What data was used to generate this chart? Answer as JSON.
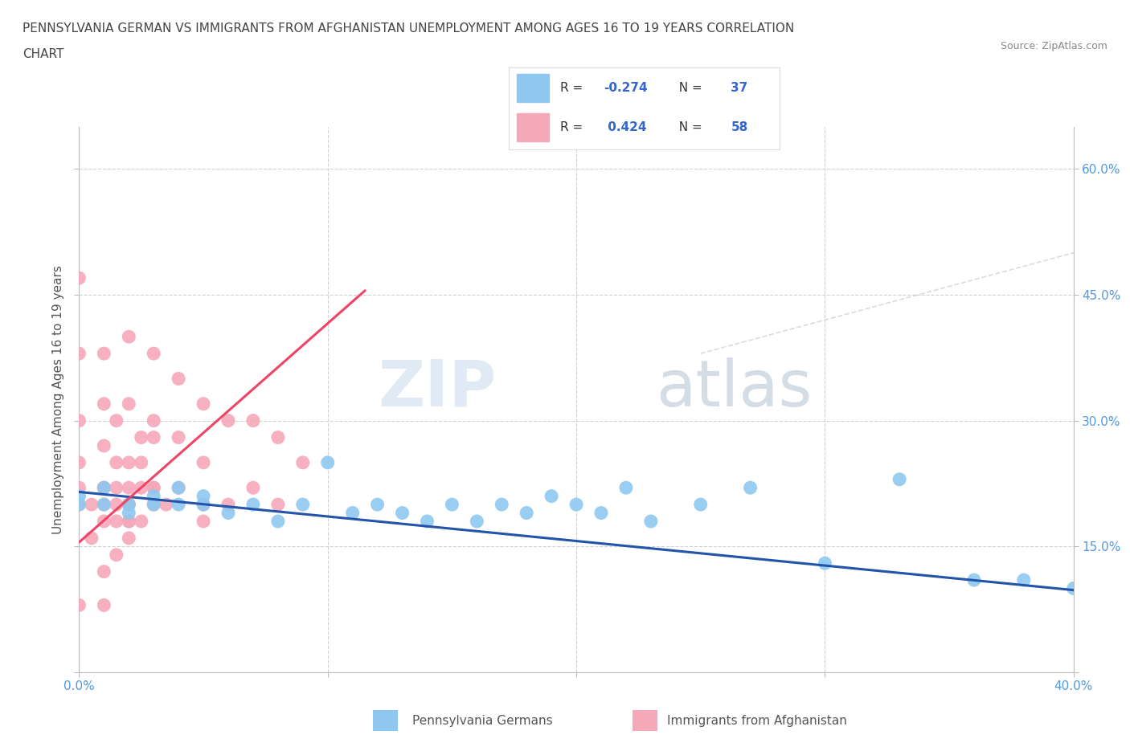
{
  "title_line1": "PENNSYLVANIA GERMAN VS IMMIGRANTS FROM AFGHANISTAN UNEMPLOYMENT AMONG AGES 16 TO 19 YEARS CORRELATION",
  "title_line2": "CHART",
  "source_text": "Source: ZipAtlas.com",
  "ylabel": "Unemployment Among Ages 16 to 19 years",
  "xlim": [
    0.0,
    0.4
  ],
  "ylim": [
    0.0,
    0.65
  ],
  "x_ticks": [
    0.0,
    0.1,
    0.2,
    0.3,
    0.4
  ],
  "x_tick_labels": [
    "0.0%",
    "",
    "",
    "",
    "40.0%"
  ],
  "y_ticks": [
    0.0,
    0.15,
    0.3,
    0.45,
    0.6
  ],
  "y_tick_labels_left": [
    "",
    "",
    "",
    "",
    ""
  ],
  "y_tick_labels_right": [
    "",
    "15.0%",
    "30.0%",
    "45.0%",
    "60.0%"
  ],
  "color_blue": "#8EC8F0",
  "color_pink": "#F5A8B8",
  "color_trend_blue": "#2255AA",
  "color_trend_pink": "#EE4466",
  "color_trend_blue_dashed": "#AABBDD",
  "watermark_zip": "ZIP",
  "watermark_atlas": "atlas",
  "bg_color": "#FFFFFF",
  "grid_color": "#CCCCCC",
  "pennsylvania_x": [
    0.0,
    0.0,
    0.01,
    0.01,
    0.02,
    0.02,
    0.03,
    0.03,
    0.04,
    0.04,
    0.05,
    0.05,
    0.06,
    0.07,
    0.08,
    0.09,
    0.1,
    0.11,
    0.12,
    0.13,
    0.14,
    0.15,
    0.16,
    0.17,
    0.18,
    0.19,
    0.2,
    0.21,
    0.22,
    0.23,
    0.25,
    0.27,
    0.3,
    0.33,
    0.36,
    0.38,
    0.4
  ],
  "pennsylvania_y": [
    0.2,
    0.21,
    0.2,
    0.22,
    0.2,
    0.19,
    0.21,
    0.2,
    0.22,
    0.2,
    0.21,
    0.2,
    0.19,
    0.2,
    0.18,
    0.2,
    0.25,
    0.19,
    0.2,
    0.19,
    0.18,
    0.2,
    0.18,
    0.2,
    0.19,
    0.21,
    0.2,
    0.19,
    0.22,
    0.18,
    0.2,
    0.22,
    0.13,
    0.23,
    0.11,
    0.11,
    0.1
  ],
  "afghanistan_x": [
    0.0,
    0.0,
    0.0,
    0.0,
    0.0,
    0.0,
    0.0,
    0.01,
    0.01,
    0.01,
    0.01,
    0.01,
    0.01,
    0.015,
    0.015,
    0.02,
    0.02,
    0.02,
    0.02,
    0.03,
    0.03,
    0.03,
    0.04,
    0.04,
    0.04,
    0.05,
    0.05,
    0.05,
    0.06,
    0.06,
    0.07,
    0.07,
    0.08,
    0.08,
    0.09,
    0.05,
    0.025,
    0.015,
    0.01,
    0.005,
    0.02,
    0.03,
    0.025,
    0.015,
    0.01,
    0.02,
    0.03,
    0.035,
    0.025,
    0.02,
    0.015,
    0.01,
    0.025,
    0.02,
    0.015,
    0.005,
    0.03,
    0.02
  ],
  "afghanistan_y": [
    0.47,
    0.38,
    0.3,
    0.25,
    0.22,
    0.2,
    0.08,
    0.38,
    0.32,
    0.27,
    0.22,
    0.2,
    0.08,
    0.3,
    0.22,
    0.4,
    0.32,
    0.25,
    0.2,
    0.38,
    0.3,
    0.22,
    0.35,
    0.28,
    0.22,
    0.32,
    0.25,
    0.18,
    0.3,
    0.2,
    0.3,
    0.22,
    0.28,
    0.2,
    0.25,
    0.2,
    0.28,
    0.25,
    0.22,
    0.2,
    0.22,
    0.28,
    0.22,
    0.2,
    0.18,
    0.18,
    0.22,
    0.2,
    0.18,
    0.16,
    0.14,
    0.12,
    0.25,
    0.2,
    0.18,
    0.16,
    0.2,
    0.18
  ],
  "pa_trend_x0": 0.0,
  "pa_trend_x1": 0.4,
  "pa_trend_y0": 0.215,
  "pa_trend_y1": 0.098,
  "af_trend_x0": 0.0,
  "af_trend_x1": 0.115,
  "af_trend_y0": 0.155,
  "af_trend_y1": 0.455
}
